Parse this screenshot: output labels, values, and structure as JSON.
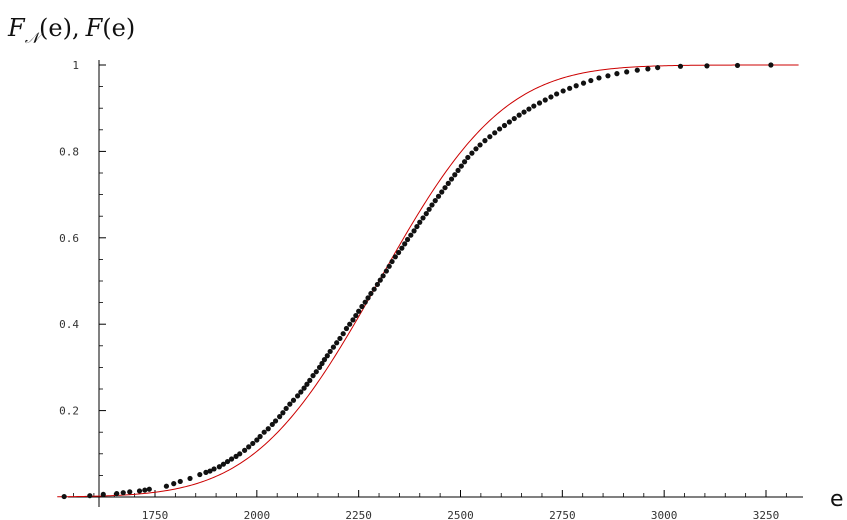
{
  "chart_data": {
    "type": "scatter",
    "title": "",
    "xlabel": "e",
    "ylabel": "F𝒩(e), F(e)",
    "ylabel_parts": {
      "f_main": "F",
      "f_sub": "𝒩",
      "arg1": "(e),",
      "f2": "F",
      "arg2": "(e)"
    },
    "xlim": [
      1510,
      3330
    ],
    "ylim": [
      0,
      1.0
    ],
    "x_ticks": [
      1750,
      2000,
      2250,
      2500,
      2750,
      3000,
      3250
    ],
    "y_ticks": [
      0.2,
      0.4,
      0.6,
      0.8,
      1
    ],
    "y_tick_labels": [
      "0.2",
      "0.4",
      "0.6",
      "0.8",
      "1"
    ],
    "grid": false,
    "curve_color": "#cc0000",
    "point_color": "#111111",
    "series": [
      {
        "kind": "points",
        "x": [
          1527,
          1590,
          1623,
          1656,
          1672,
          1688,
          1712,
          1725,
          1736,
          1778,
          1796,
          1812,
          1836,
          1860,
          1875,
          1885,
          1895,
          1908,
          1918,
          1928,
          1938,
          1949,
          1958,
          1970,
          1980,
          1990,
          2000,
          2008,
          2018,
          2028,
          2038,
          2046,
          2056,
          2064,
          2072,
          2081,
          2090,
          2100,
          2108,
          2116,
          2123,
          2130,
          2138,
          2146,
          2154,
          2160,
          2166,
          2173,
          2180,
          2188,
          2196,
          2204,
          2212,
          2220,
          2228,
          2236,
          2243,
          2250,
          2258,
          2266,
          2273,
          2280,
          2288,
          2296,
          2303,
          2310,
          2318,
          2325,
          2332,
          2340,
          2348,
          2356,
          2363,
          2370,
          2378,
          2386,
          2393,
          2400,
          2408,
          2416,
          2423,
          2430,
          2438,
          2446,
          2454,
          2462,
          2470,
          2478,
          2486,
          2494,
          2502,
          2510,
          2518,
          2528,
          2538,
          2548,
          2560,
          2572,
          2584,
          2596,
          2608,
          2620,
          2632,
          2644,
          2656,
          2668,
          2680,
          2694,
          2708,
          2722,
          2736,
          2752,
          2768,
          2784,
          2802,
          2820,
          2840,
          2862,
          2884,
          2908,
          2934,
          2960,
          2984,
          3040,
          3105,
          3180,
          3262
        ],
        "y": [
          0.001,
          0.003,
          0.006,
          0.008,
          0.01,
          0.012,
          0.014,
          0.016,
          0.018,
          0.025,
          0.031,
          0.036,
          0.043,
          0.052,
          0.057,
          0.06,
          0.065,
          0.07,
          0.076,
          0.082,
          0.088,
          0.094,
          0.1,
          0.108,
          0.116,
          0.124,
          0.132,
          0.14,
          0.15,
          0.158,
          0.168,
          0.176,
          0.186,
          0.195,
          0.205,
          0.215,
          0.224,
          0.234,
          0.243,
          0.252,
          0.261,
          0.27,
          0.281,
          0.29,
          0.3,
          0.309,
          0.318,
          0.327,
          0.337,
          0.347,
          0.357,
          0.367,
          0.378,
          0.39,
          0.4,
          0.41,
          0.42,
          0.43,
          0.441,
          0.451,
          0.461,
          0.471,
          0.481,
          0.492,
          0.502,
          0.512,
          0.523,
          0.534,
          0.545,
          0.556,
          0.566,
          0.576,
          0.586,
          0.596,
          0.606,
          0.616,
          0.626,
          0.636,
          0.646,
          0.656,
          0.666,
          0.676,
          0.686,
          0.696,
          0.706,
          0.716,
          0.726,
          0.736,
          0.746,
          0.756,
          0.766,
          0.776,
          0.786,
          0.796,
          0.806,
          0.815,
          0.825,
          0.834,
          0.843,
          0.852,
          0.86,
          0.868,
          0.876,
          0.884,
          0.891,
          0.898,
          0.905,
          0.912,
          0.919,
          0.926,
          0.933,
          0.94,
          0.946,
          0.952,
          0.958,
          0.964,
          0.97,
          0.975,
          0.98,
          0.984,
          0.988,
          0.991,
          0.994,
          0.997,
          0.998,
          0.999,
          1.0
        ]
      },
      {
        "kind": "curve",
        "distribution": "normal_cdf",
        "mean": 2300,
        "sd": 240,
        "x_range": [
          1510,
          3330
        ]
      }
    ]
  }
}
